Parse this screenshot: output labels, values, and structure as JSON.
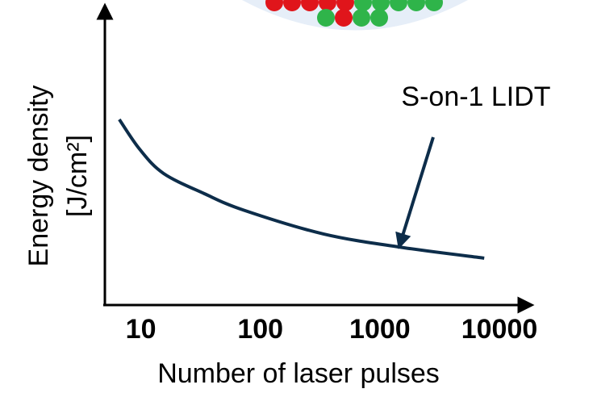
{
  "chart_data": {
    "type": "line",
    "xlabel": "Number of laser pulses",
    "ylabel": [
      "Energy density",
      "[J/cm²]"
    ],
    "annotation": "S-on-1 LIDT",
    "x": [
      6.6,
      9.8,
      15.5,
      34,
      72,
      340,
      1590,
      7470
    ],
    "series": [
      {
        "color": "#0d2d4a",
        "values": [
          0.625,
          0.524,
          0.443,
          0.375,
          0.32,
          0.239,
          0.193,
          0.158
        ]
      }
    ],
    "xscale": "log",
    "xlim": [
      5,
      17500
    ],
    "xticks": [
      10,
      100,
      1000,
      10000
    ],
    "ylim": [
      0,
      1
    ]
  }
}
